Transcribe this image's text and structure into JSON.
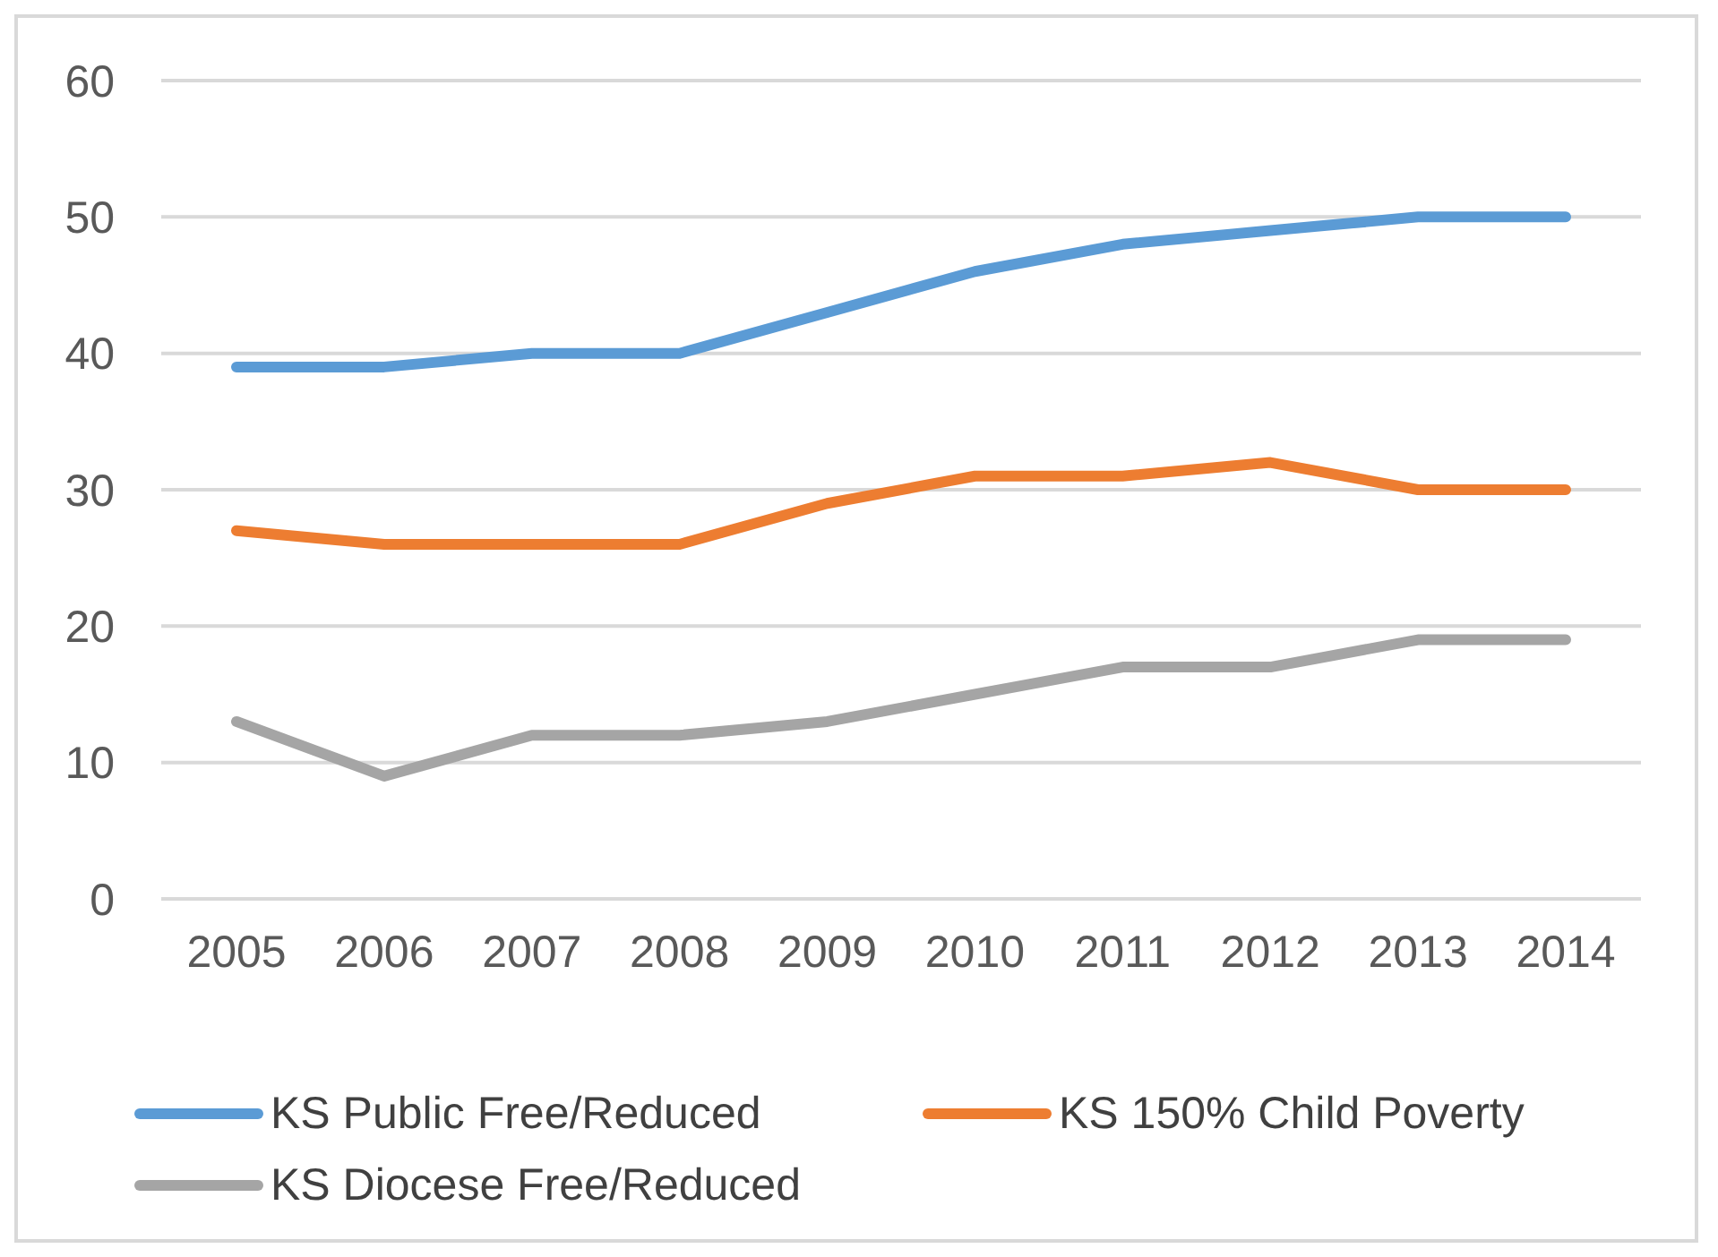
{
  "chart_data": {
    "type": "line",
    "categories": [
      "2005",
      "2006",
      "2007",
      "2008",
      "2009",
      "2010",
      "2011",
      "2012",
      "2013",
      "2014"
    ],
    "series": [
      {
        "name": "KS Public Free/Reduced",
        "color": "#5b9bd5",
        "values": [
          39,
          39,
          40,
          40,
          43,
          46,
          48,
          49,
          50,
          50
        ]
      },
      {
        "name": "KS 150% Child Poverty",
        "color": "#ed7d31",
        "values": [
          27,
          26,
          26,
          26,
          29,
          31,
          31,
          32,
          30,
          30
        ]
      },
      {
        "name": "KS Diocese Free/Reduced",
        "color": "#a5a5a5",
        "values": [
          13,
          9,
          12,
          12,
          13,
          15,
          17,
          17,
          19,
          19
        ]
      }
    ],
    "ylim": [
      0,
      60
    ],
    "yticks": [
      0,
      10,
      20,
      30,
      40,
      50,
      60
    ],
    "grid": "y",
    "legend": "bottom",
    "marker": "none",
    "line_style": "solid"
  }
}
